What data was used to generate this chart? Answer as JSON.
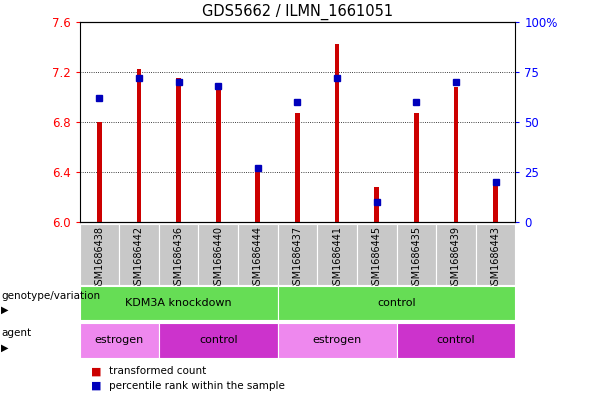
{
  "title": "GDS5662 / ILMN_1661051",
  "samples": [
    "GSM1686438",
    "GSM1686442",
    "GSM1686436",
    "GSM1686440",
    "GSM1686444",
    "GSM1686437",
    "GSM1686441",
    "GSM1686445",
    "GSM1686435",
    "GSM1686439",
    "GSM1686443"
  ],
  "red_values": [
    6.8,
    7.22,
    7.15,
    7.1,
    6.4,
    6.87,
    7.42,
    6.28,
    6.87,
    7.08,
    6.33
  ],
  "blue_percentiles": [
    62,
    72,
    70,
    68,
    27,
    60,
    72,
    10,
    60,
    70,
    20
  ],
  "ymin": 6.0,
  "ymax": 7.6,
  "yticks_left": [
    6.0,
    6.4,
    6.8,
    7.2,
    7.6
  ],
  "yticks_right": [
    0,
    25,
    50,
    75,
    100
  ],
  "bar_color": "#cc0000",
  "dot_color": "#0000bb",
  "bar_width": 0.12,
  "geno_groups": [
    {
      "label": "KDM3A knockdown",
      "start": 0,
      "end": 5,
      "color": "#66dd55"
    },
    {
      "label": "control",
      "start": 5,
      "end": 11,
      "color": "#66dd55"
    }
  ],
  "agent_groups": [
    {
      "label": "estrogen",
      "start": 0,
      "end": 2,
      "color": "#ee88ee"
    },
    {
      "label": "control",
      "start": 2,
      "end": 5,
      "color": "#cc33cc"
    },
    {
      "label": "estrogen",
      "start": 5,
      "end": 8,
      "color": "#ee88ee"
    },
    {
      "label": "control",
      "start": 8,
      "end": 11,
      "color": "#cc33cc"
    }
  ],
  "genotype_label": "genotype/variation",
  "agent_label": "agent",
  "legend_red": "transformed count",
  "legend_blue": "percentile rank within the sample",
  "sample_box_color": "#c8c8c8",
  "grid_yticks": [
    6.4,
    6.8,
    7.2
  ]
}
